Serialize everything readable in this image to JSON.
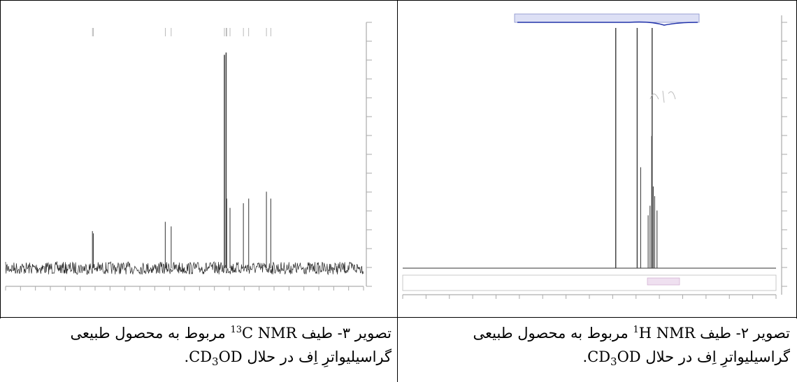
{
  "figures": [
    {
      "id": "fig3",
      "nucleus": "13C",
      "caption": {
        "prefix": "تصویر ۳- طیف",
        "isotope_mass": "13",
        "isotope_symbol": "C",
        "technique": "NMR",
        "suffix": "مربوط به محصول طبیعی",
        "line2_before": "گراسیلیواترِ اِف در حلال",
        "solvent_main": "CD",
        "solvent_sub": "3",
        "solvent_end": "OD",
        "period": "."
      },
      "chart_data": {
        "type": "line",
        "title": "",
        "xlabel": "",
        "ylabel": "",
        "xlim": [
          220,
          -10
        ],
        "peaks": [
          {
            "x": 164.2,
            "y": 0.16
          },
          {
            "x": 163.6,
            "y": 0.15
          },
          {
            "x": 117.4,
            "y": 0.2
          },
          {
            "x": 113.6,
            "y": 0.18
          },
          {
            "x": 79.4,
            "y": 0.92
          },
          {
            "x": 78.3,
            "y": 0.93
          },
          {
            "x": 77.9,
            "y": 0.3
          },
          {
            "x": 75.8,
            "y": 0.26
          },
          {
            "x": 67.2,
            "y": 0.28
          },
          {
            "x": 63.8,
            "y": 0.3
          },
          {
            "x": 52.4,
            "y": 0.33
          },
          {
            "x": 49.6,
            "y": 0.3
          }
        ],
        "grid": false
      }
    },
    {
      "id": "fig2",
      "nucleus": "1H",
      "caption": {
        "prefix": "تصویر ۲- طیف",
        "isotope_mass": "1",
        "isotope_symbol": "H",
        "technique": "NMR",
        "suffix": "مربوط به محصول طبیعی",
        "line2_before": "گراسیلیواترِ اِف در حلال",
        "solvent_main": "CD",
        "solvent_sub": "3",
        "solvent_end": "OD",
        "period": "."
      },
      "chart_data": {
        "type": "line",
        "title": "",
        "xlabel": "",
        "ylabel": "",
        "xlim": [
          14,
          -2
        ],
        "peaks": [
          {
            "x": 4.87,
            "y": 1.0
          },
          {
            "x": 3.95,
            "y": 1.0
          },
          {
            "x": 3.8,
            "y": 0.42
          },
          {
            "x": 3.48,
            "y": 0.22
          },
          {
            "x": 3.4,
            "y": 0.26
          },
          {
            "x": 3.33,
            "y": 0.55
          },
          {
            "x": 3.26,
            "y": 0.34
          },
          {
            "x": 3.2,
            "y": 0.3
          },
          {
            "x": 3.1,
            "y": 0.24
          },
          {
            "x": 3.31,
            "y": 1.0
          }
        ],
        "grid": false
      }
    }
  ]
}
